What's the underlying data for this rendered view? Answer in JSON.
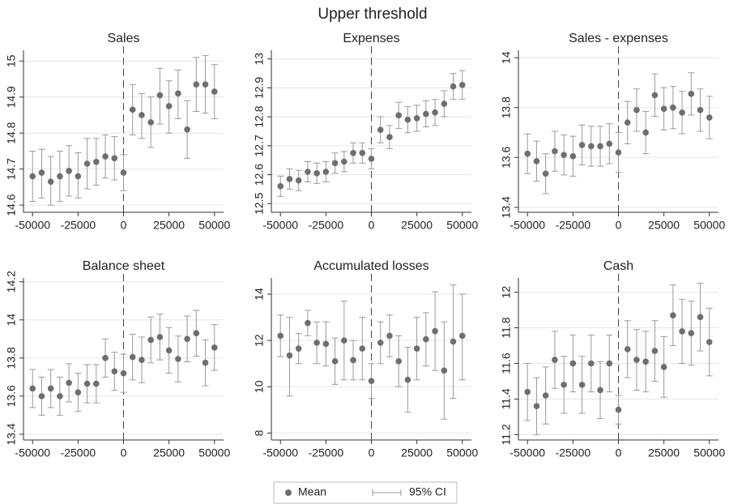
{
  "title": "Upper threshold",
  "legend": [
    {
      "name": "Mean",
      "color": "#6e6e6e"
    },
    {
      "name": "95% CI",
      "color": "#9a9a9a"
    }
  ],
  "chart_data": [
    {
      "type": "errorbar",
      "title": "Sales",
      "x": [
        -50000,
        -45000,
        -40000,
        -35000,
        -30000,
        -25000,
        -20000,
        -15000,
        -10000,
        -5000,
        0,
        5000,
        10000,
        15000,
        20000,
        25000,
        30000,
        35000,
        40000,
        45000,
        50000
      ],
      "mean": [
        14.68,
        14.69,
        14.665,
        14.68,
        14.695,
        14.68,
        14.715,
        14.72,
        14.735,
        14.73,
        14.69,
        14.865,
        14.85,
        14.83,
        14.905,
        14.875,
        14.91,
        14.81,
        14.935,
        14.935,
        14.915
      ],
      "low": [
        14.61,
        14.62,
        14.6,
        14.61,
        14.625,
        14.62,
        14.645,
        14.655,
        14.675,
        14.67,
        14.64,
        14.795,
        14.785,
        14.76,
        14.825,
        14.8,
        14.84,
        14.73,
        14.86,
        14.855,
        14.84
      ],
      "high": [
        14.75,
        14.755,
        14.735,
        14.75,
        14.765,
        14.745,
        14.785,
        14.785,
        14.795,
        14.79,
        14.74,
        14.935,
        14.91,
        14.9,
        14.98,
        14.945,
        14.975,
        14.89,
        15.01,
        15.015,
        14.99
      ],
      "xlim": [
        -55000,
        55000
      ],
      "xticks": [
        -50000,
        -25000,
        0,
        25000,
        50000
      ],
      "ylim": [
        14.58,
        15.03
      ],
      "yticks": [
        14.6,
        14.7,
        14.8,
        14.9,
        15
      ],
      "ref_line": 0,
      "grid": true
    },
    {
      "type": "errorbar",
      "title": "Expenses",
      "x": [
        -50000,
        -45000,
        -40000,
        -35000,
        -30000,
        -25000,
        -20000,
        -15000,
        -10000,
        -5000,
        0,
        5000,
        10000,
        15000,
        20000,
        25000,
        30000,
        35000,
        40000,
        45000,
        50000
      ],
      "mean": [
        12.56,
        12.585,
        12.58,
        12.61,
        12.605,
        12.61,
        12.64,
        12.645,
        12.675,
        12.675,
        12.655,
        12.755,
        12.73,
        12.805,
        12.79,
        12.795,
        12.81,
        12.815,
        12.845,
        12.905,
        12.91
      ],
      "low": [
        12.525,
        12.55,
        12.545,
        12.575,
        12.57,
        12.575,
        12.605,
        12.61,
        12.64,
        12.64,
        12.62,
        12.71,
        12.69,
        12.76,
        12.745,
        12.75,
        12.765,
        12.77,
        12.8,
        12.86,
        12.86
      ],
      "high": [
        12.595,
        12.62,
        12.615,
        12.645,
        12.64,
        12.645,
        12.675,
        12.68,
        12.71,
        12.71,
        12.69,
        12.8,
        12.77,
        12.85,
        12.835,
        12.84,
        12.855,
        12.86,
        12.89,
        12.95,
        12.96
      ],
      "xlim": [
        -55000,
        55000
      ],
      "xticks": [
        -50000,
        -25000,
        0,
        25000,
        50000
      ],
      "ylim": [
        12.47,
        13.03
      ],
      "yticks": [
        12.5,
        12.6,
        12.7,
        12.8,
        12.9,
        13
      ],
      "ref_line": 0,
      "grid": true
    },
    {
      "type": "errorbar",
      "title": "Sales - expenses",
      "x": [
        -50000,
        -45000,
        -40000,
        -35000,
        -30000,
        -25000,
        -20000,
        -15000,
        -10000,
        -5000,
        0,
        5000,
        10000,
        15000,
        20000,
        25000,
        30000,
        35000,
        40000,
        45000,
        50000
      ],
      "mean": [
        13.615,
        13.585,
        13.535,
        13.625,
        13.61,
        13.605,
        13.65,
        13.645,
        13.645,
        13.655,
        13.62,
        13.74,
        13.79,
        13.7,
        13.85,
        13.795,
        13.8,
        13.78,
        13.855,
        13.79,
        13.76
      ],
      "low": [
        13.535,
        13.505,
        13.455,
        13.545,
        13.53,
        13.525,
        13.57,
        13.565,
        13.565,
        13.575,
        13.54,
        13.655,
        13.705,
        13.615,
        13.765,
        13.71,
        13.715,
        13.695,
        13.77,
        13.705,
        13.675
      ],
      "high": [
        13.695,
        13.665,
        13.615,
        13.705,
        13.69,
        13.685,
        13.73,
        13.725,
        13.725,
        13.735,
        13.7,
        13.825,
        13.875,
        13.785,
        13.935,
        13.88,
        13.885,
        13.865,
        13.94,
        13.875,
        13.845
      ],
      "xlim": [
        -55000,
        55000
      ],
      "xticks": [
        -50000,
        -25000,
        0,
        25000,
        50000
      ],
      "ylim": [
        13.38,
        14.03
      ],
      "yticks": [
        13.4,
        13.6,
        13.8,
        14
      ],
      "ref_line": 0,
      "grid": true
    },
    {
      "type": "errorbar",
      "title": "Balance sheet",
      "x": [
        -50000,
        -45000,
        -40000,
        -35000,
        -30000,
        -25000,
        -20000,
        -15000,
        -10000,
        -5000,
        0,
        5000,
        10000,
        15000,
        20000,
        25000,
        30000,
        35000,
        40000,
        45000,
        50000
      ],
      "mean": [
        13.64,
        13.6,
        13.64,
        13.6,
        13.67,
        13.62,
        13.665,
        13.665,
        13.8,
        13.73,
        13.72,
        13.805,
        13.79,
        13.895,
        13.91,
        13.84,
        13.795,
        13.9,
        13.93,
        13.775,
        13.855
      ],
      "low": [
        13.54,
        13.5,
        13.54,
        13.5,
        13.57,
        13.52,
        13.565,
        13.565,
        13.7,
        13.63,
        13.62,
        13.685,
        13.67,
        13.775,
        13.79,
        13.72,
        13.675,
        13.78,
        13.81,
        13.655,
        13.735
      ],
      "high": [
        13.74,
        13.7,
        13.74,
        13.7,
        13.77,
        13.72,
        13.765,
        13.765,
        13.9,
        13.83,
        13.82,
        13.925,
        13.91,
        14.015,
        14.03,
        13.96,
        13.915,
        14.02,
        14.05,
        13.895,
        13.975
      ],
      "xlim": [
        -55000,
        55000
      ],
      "xticks": [
        -50000,
        -25000,
        0,
        25000,
        50000
      ],
      "ylim": [
        13.37,
        14.22
      ],
      "yticks": [
        13.4,
        13.6,
        13.8,
        14,
        14.2
      ],
      "ref_line": 0,
      "grid": true
    },
    {
      "type": "errorbar",
      "title": "Accumulated losses",
      "x": [
        -50000,
        -45000,
        -40000,
        -35000,
        -30000,
        -25000,
        -20000,
        -15000,
        -10000,
        -5000,
        0,
        5000,
        10000,
        15000,
        20000,
        25000,
        30000,
        35000,
        40000,
        45000,
        50000
      ],
      "mean": [
        12.2,
        11.35,
        11.65,
        12.75,
        11.9,
        11.85,
        11.1,
        12.0,
        11.15,
        11.65,
        10.25,
        11.9,
        12.2,
        11.1,
        10.3,
        11.65,
        12.05,
        12.4,
        10.7,
        11.95,
        12.2
      ],
      "low": [
        11.3,
        9.6,
        11.0,
        12.2,
        11.0,
        10.9,
        10.1,
        10.3,
        10.3,
        10.3,
        9.5,
        11.0,
        11.3,
        10.0,
        8.9,
        10.3,
        10.9,
        10.7,
        8.6,
        9.5,
        10.3
      ],
      "high": [
        13.1,
        13.0,
        12.3,
        13.3,
        12.8,
        12.8,
        12.1,
        13.7,
        12.0,
        13.0,
        11.0,
        12.8,
        13.1,
        12.2,
        11.7,
        13.0,
        13.2,
        14.1,
        12.8,
        14.4,
        14.0
      ],
      "xlim": [
        -55000,
        55000
      ],
      "xticks": [
        -50000,
        -25000,
        0,
        25000,
        50000
      ],
      "ylim": [
        7.7,
        14.7
      ],
      "yticks": [
        8,
        10,
        12,
        14
      ],
      "ref_line": 0,
      "grid": true
    },
    {
      "type": "errorbar",
      "title": "Cash",
      "x": [
        -50000,
        -45000,
        -40000,
        -35000,
        -30000,
        -25000,
        -20000,
        -15000,
        -10000,
        -5000,
        0,
        5000,
        10000,
        15000,
        20000,
        25000,
        30000,
        35000,
        40000,
        45000,
        50000
      ],
      "mean": [
        11.44,
        11.36,
        11.42,
        11.62,
        11.48,
        11.6,
        11.48,
        11.6,
        11.45,
        11.6,
        11.34,
        11.68,
        11.62,
        11.61,
        11.67,
        11.58,
        11.87,
        11.78,
        11.77,
        11.86,
        11.72
      ],
      "low": [
        11.28,
        11.2,
        11.26,
        11.46,
        11.32,
        11.44,
        11.32,
        11.44,
        11.29,
        11.44,
        11.26,
        11.52,
        11.45,
        11.44,
        11.5,
        11.41,
        11.7,
        11.6,
        11.59,
        11.67,
        11.53
      ],
      "high": [
        11.6,
        11.52,
        11.58,
        11.78,
        11.64,
        11.76,
        11.64,
        11.76,
        11.61,
        11.76,
        11.42,
        11.84,
        11.79,
        11.78,
        11.84,
        11.75,
        12.04,
        11.96,
        11.95,
        12.05,
        11.91
      ],
      "xlim": [
        -55000,
        55000
      ],
      "xticks": [
        -50000,
        -25000,
        0,
        25000,
        50000
      ],
      "ylim": [
        11.17,
        12.08
      ],
      "yticks": [
        11.2,
        11.4,
        11.6,
        11.8,
        12
      ],
      "ref_line": 0,
      "grid": true
    }
  ]
}
